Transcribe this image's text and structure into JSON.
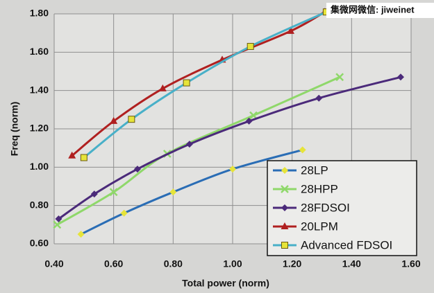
{
  "chart_data": {
    "type": "line",
    "x_label": "Total power (norm)",
    "y_label": "Freq (norm)",
    "watermark": "集微网微信: jiweinet",
    "xlim": [
      0.4,
      1.6
    ],
    "ylim": [
      0.6,
      1.8
    ],
    "xticks": [
      {
        "value": 0.4,
        "label": "0.40"
      },
      {
        "value": 0.6,
        "label": "0.60"
      },
      {
        "value": 0.8,
        "label": "0.80"
      },
      {
        "value": 1.0,
        "label": "1.00"
      },
      {
        "value": 1.2,
        "label": "1.20"
      },
      {
        "value": 1.4,
        "label": "1.40"
      },
      {
        "value": 1.6,
        "label": "1.60"
      }
    ],
    "yticks": [
      {
        "value": 0.6,
        "label": "0.60"
      },
      {
        "value": 0.8,
        "label": "0.80"
      },
      {
        "value": 1.0,
        "label": "1.00"
      },
      {
        "value": 1.2,
        "label": "1.20"
      },
      {
        "value": 1.4,
        "label": "1.40"
      },
      {
        "value": 1.6,
        "label": "1.60"
      },
      {
        "value": 1.8,
        "label": "1.80"
      }
    ],
    "grid": true,
    "legend": "lower right",
    "series": [
      {
        "name": "28LP",
        "color": "#2a6db5",
        "marker": "diamond",
        "marker_color": "#e6e43a",
        "x": [
          0.49,
          0.635,
          0.8,
          1.0,
          1.235
        ],
        "values": [
          0.65,
          0.76,
          0.87,
          0.99,
          1.09
        ]
      },
      {
        "name": "28HPP",
        "color": "#8fd86a",
        "marker": "x",
        "marker_color": "#8fd86a",
        "x": [
          0.41,
          0.6,
          0.78,
          1.07,
          1.36
        ],
        "values": [
          0.7,
          0.87,
          1.07,
          1.27,
          1.47
        ]
      },
      {
        "name": "28FDSOI",
        "color": "#4b2a7a",
        "marker": "diamond",
        "marker_color": "#4b2a7a",
        "x": [
          0.415,
          0.535,
          0.68,
          0.855,
          1.055,
          1.29,
          1.565
        ],
        "values": [
          0.73,
          0.86,
          0.99,
          1.12,
          1.24,
          1.36,
          1.47
        ]
      },
      {
        "name": "20LPM",
        "color": "#b02020",
        "marker": "triangle",
        "marker_color": "#b02020",
        "x": [
          0.46,
          0.6,
          0.765,
          0.965,
          1.195,
          1.31
        ],
        "values": [
          1.06,
          1.24,
          1.41,
          1.56,
          1.71,
          1.81
        ]
      },
      {
        "name": "Advanced FDSOI",
        "color": "#48b0c8",
        "marker": "square",
        "marker_color": "#e6e43a",
        "x": [
          0.5,
          0.66,
          0.845,
          1.06,
          1.315
        ],
        "values": [
          1.05,
          1.25,
          1.44,
          1.63,
          1.81
        ]
      }
    ]
  }
}
